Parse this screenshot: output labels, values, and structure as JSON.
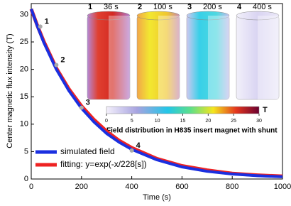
{
  "chart_data": {
    "type": "line",
    "xlabel": "Time (s)",
    "ylabel": "Center magnetic flux intensity (T)",
    "xlim": [
      0,
      1000
    ],
    "ylim": [
      0,
      32
    ],
    "xticks": [
      0,
      200,
      400,
      600,
      800,
      1000
    ],
    "yticks": [
      0,
      5,
      10,
      15,
      20,
      25,
      30
    ],
    "legend": "lower left",
    "x": [
      0,
      25,
      50,
      100,
      150,
      200,
      250,
      300,
      350,
      400,
      500,
      600,
      700,
      800,
      900,
      1000
    ],
    "series": [
      {
        "name": "fitting: y=exp(-x/228[s])",
        "color": "#ee2222",
        "values": [
          31,
          27.9,
          25.1,
          20.2,
          16.4,
          13.3,
          10.8,
          8.7,
          7.0,
          5.7,
          3.7,
          2.4,
          1.6,
          1.0,
          0.7,
          0.5
        ]
      },
      {
        "name": "simulated field",
        "color": "#1a2fe0",
        "values": [
          31,
          27.8,
          24.9,
          20.0,
          16.1,
          12.9,
          10.4,
          8.3,
          6.7,
          5.4,
          3.5,
          2.2,
          1.4,
          0.9,
          0.6,
          0.4
        ]
      }
    ],
    "points": {
      "x": [
        36,
        100,
        200,
        400
      ],
      "values": [
        27.8,
        20.8,
        13.0,
        5.2
      ],
      "labels": [
        "1",
        "2",
        "3",
        "4"
      ]
    },
    "inset": {
      "panels": [
        {
          "number": "1",
          "time": "36 s"
        },
        {
          "number": "2",
          "time": "100 s"
        },
        {
          "number": "3",
          "time": "200 s"
        },
        {
          "number": "4",
          "time": "400 s"
        }
      ],
      "colorbar": {
        "lim": [
          0,
          30
        ],
        "ticks": [
          0,
          5,
          10,
          15,
          20,
          25,
          30
        ],
        "unit": "T"
      },
      "caption": "Field distribution in H835 insert magnet with shunt"
    }
  }
}
